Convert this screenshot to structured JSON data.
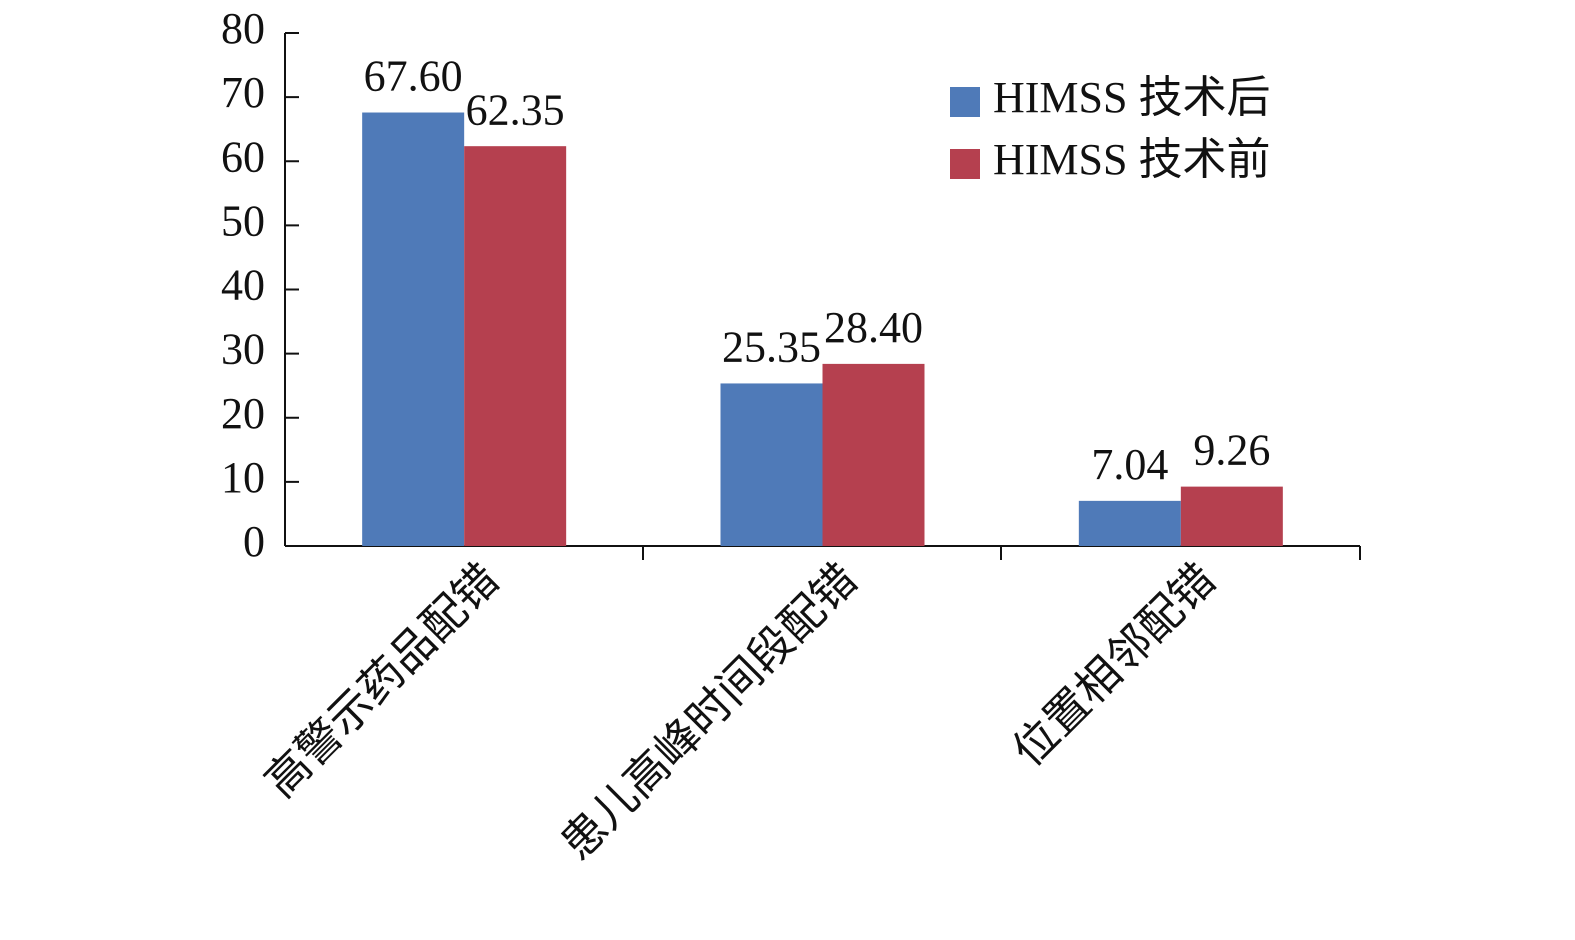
{
  "chart_data": {
    "type": "bar",
    "categories": [
      "高警示药品配错",
      "患儿高峰时间段配错",
      "位置相邻配错"
    ],
    "series": [
      {
        "name": "HIMSS 技术后",
        "color": "#4f7ab8",
        "values": [
          67.6,
          25.35,
          7.04
        ],
        "value_labels": [
          "67.60",
          "25.35",
          "7.04"
        ]
      },
      {
        "name": "HIMSS 技术前",
        "color": "#b5404f",
        "values": [
          62.35,
          28.4,
          9.26
        ],
        "value_labels": [
          "62.35",
          "28.40",
          "9.26"
        ]
      }
    ],
    "ylim": [
      0,
      80
    ],
    "yticks": [
      0,
      10,
      20,
      30,
      40,
      50,
      60,
      70,
      80
    ],
    "grid": false,
    "legend": "upper right"
  }
}
